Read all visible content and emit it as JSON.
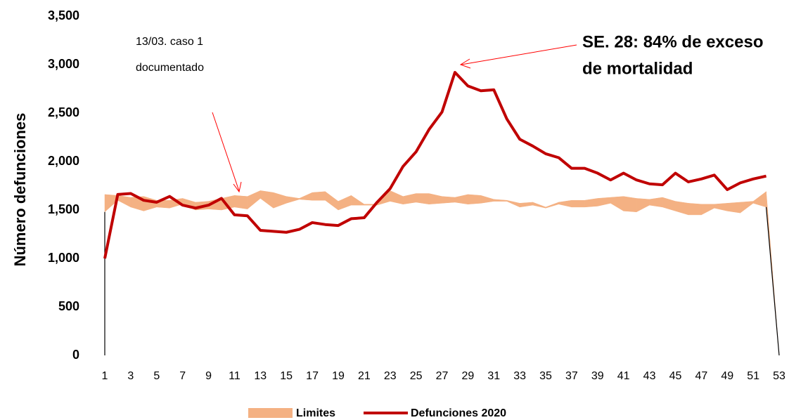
{
  "chart_data": {
    "type": "line",
    "y_label": "Número defunciones",
    "annotations": [
      "13/03. caso 1",
      "documentado",
      "SE. 28: 84% de exceso",
      "de mortalidad"
    ],
    "x": [
      1,
      2,
      3,
      4,
      5,
      6,
      7,
      8,
      9,
      10,
      11,
      12,
      13,
      14,
      15,
      16,
      17,
      18,
      19,
      20,
      21,
      22,
      23,
      24,
      25,
      26,
      27,
      28,
      29,
      30,
      31,
      32,
      33,
      34,
      35,
      36,
      37,
      38,
      39,
      40,
      41,
      42,
      43,
      44,
      45,
      46,
      47,
      48,
      49,
      50,
      51,
      52,
      53
    ],
    "xlim": [
      1,
      53
    ],
    "xticks": [
      1,
      3,
      5,
      7,
      9,
      11,
      13,
      15,
      17,
      19,
      21,
      23,
      25,
      27,
      29,
      31,
      33,
      35,
      37,
      39,
      41,
      43,
      45,
      47,
      49,
      51,
      53
    ],
    "ylim": [
      0,
      3500
    ],
    "yticks": [
      0,
      500,
      {
        "value": 1000,
        "label": "1,000"
      },
      {
        "value": 1500,
        "label": "1,500"
      },
      {
        "value": 2000,
        "label": "2,000"
      },
      {
        "value": 2500,
        "label": "2,500"
      },
      {
        "value": 3000,
        "label": "3,000"
      },
      {
        "value": 3500,
        "label": "3,500"
      }
    ],
    "series": [
      {
        "name": "Limites",
        "color": "#f4b183",
        "values": [
          1480,
          1600,
          1530,
          1490,
          1530,
          1520,
          1560,
          1500,
          1510,
          1500,
          1530,
          1510,
          1620,
          1520,
          1570,
          1610,
          1600,
          1600,
          1500,
          1550,
          1550,
          1550,
          1590,
          1560,
          1580,
          1560,
          1570,
          1580,
          1560,
          1570,
          1590,
          1590,
          1530,
          1550,
          1520,
          1560,
          1530,
          1530,
          1540,
          1570,
          1490,
          1480,
          1550,
          1530,
          1490,
          1450,
          1450,
          1520,
          1490,
          1470,
          1570,
          1530,
          0
        ],
        "upper": [
          1660,
          1650,
          1630,
          1640,
          1600,
          1600,
          1620,
          1580,
          1590,
          1620,
          1650,
          1640,
          1700,
          1680,
          1640,
          1620,
          1680,
          1690,
          1590,
          1650,
          1560,
          1560,
          1700,
          1640,
          1670,
          1670,
          1640,
          1630,
          1660,
          1650,
          1610,
          1600,
          1570,
          1580,
          1530,
          1580,
          1600,
          1600,
          1620,
          1630,
          1640,
          1620,
          1610,
          1630,
          1590,
          1570,
          1560,
          1560,
          1570,
          1580,
          1590,
          1690,
          0
        ]
      },
      {
        "name": "Defunciones 2020",
        "color": "#c00000",
        "values": [
          1000,
          1660,
          1670,
          1600,
          1580,
          1640,
          1550,
          1520,
          1550,
          1620,
          1450,
          1440,
          1290,
          1280,
          1270,
          1300,
          1370,
          1350,
          1340,
          1410,
          1420,
          1580,
          1720,
          1950,
          2100,
          2330,
          2510,
          2920,
          2780,
          2730,
          2740,
          2440,
          2230,
          2160,
          2080,
          2040,
          1930,
          1930,
          1880,
          1810,
          1880,
          1810,
          1770,
          1760,
          1880,
          1790,
          1820,
          1860,
          1710,
          1780,
          1820,
          1850,
          null
        ]
      }
    ]
  }
}
